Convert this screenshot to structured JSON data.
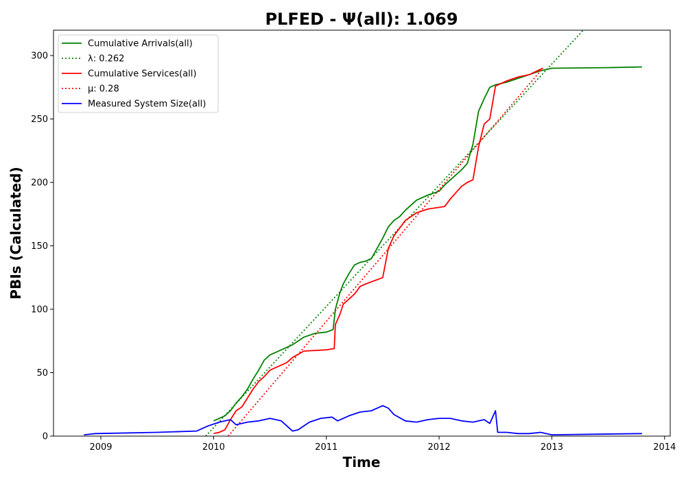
{
  "chart_data": {
    "type": "line",
    "title": "PLFED -  Ψ(all): 1.069",
    "xlabel": "Time",
    "ylabel": "PBIs (Calculated)",
    "xlim": [
      2008.58,
      2014.05
    ],
    "ylim": [
      0,
      320
    ],
    "x_ticks": [
      2009,
      2010,
      2011,
      2012,
      2013,
      2014
    ],
    "y_ticks": [
      0,
      50,
      100,
      150,
      200,
      250,
      300
    ],
    "grid": false,
    "legend_position": "top-left",
    "series": [
      {
        "name": "Cumulative Arrivals(all)",
        "color": "#008000",
        "style": "solid",
        "x": [
          2010.0,
          2010.1,
          2010.15,
          2010.2,
          2010.25,
          2010.3,
          2010.35,
          2010.4,
          2010.45,
          2010.5,
          2010.55,
          2010.6,
          2010.7,
          2010.8,
          2010.9,
          2011.0,
          2011.06,
          2011.08,
          2011.12,
          2011.15,
          2011.2,
          2011.25,
          2011.3,
          2011.35,
          2011.4,
          2011.45,
          2011.5,
          2011.55,
          2011.6,
          2011.65,
          2011.7,
          2011.8,
          2011.9,
          2012.0,
          2012.05,
          2012.1,
          2012.15,
          2012.2,
          2012.25,
          2012.3,
          2012.35,
          2012.4,
          2012.45,
          2012.5,
          2012.6,
          2012.7,
          2012.8,
          2012.9,
          2013.0,
          2013.5,
          2013.8
        ],
        "values": [
          12,
          16,
          20,
          26,
          31,
          37,
          45,
          52,
          60,
          64,
          66,
          68,
          72,
          78,
          81,
          82,
          84,
          100,
          113,
          120,
          128,
          135,
          137,
          138,
          140,
          148,
          156,
          165,
          170,
          173,
          178,
          186,
          190,
          193,
          198,
          202,
          206,
          210,
          215,
          230,
          256,
          266,
          275,
          277,
          279,
          282,
          285,
          288,
          290,
          290.5,
          291
        ]
      },
      {
        "name": "λ: 0.262",
        "color": "#008000",
        "style": "dotted",
        "x": [
          2009.93,
          2013.3
        ],
        "values": [
          0,
          322
        ]
      },
      {
        "name": "Cumulative Services(all)",
        "color": "#ff0000",
        "style": "solid",
        "x": [
          2010.0,
          2010.05,
          2010.1,
          2010.15,
          2010.2,
          2010.25,
          2010.3,
          2010.35,
          2010.4,
          2010.45,
          2010.5,
          2010.55,
          2010.6,
          2010.65,
          2010.7,
          2010.8,
          2011.0,
          2011.07,
          2011.08,
          2011.12,
          2011.15,
          2011.2,
          2011.25,
          2011.3,
          2011.35,
          2011.5,
          2011.55,
          2011.6,
          2011.65,
          2011.7,
          2011.8,
          2011.9,
          2012.05,
          2012.1,
          2012.15,
          2012.2,
          2012.25,
          2012.3,
          2012.35,
          2012.4,
          2012.45,
          2012.5,
          2012.6,
          2012.7,
          2012.8,
          2012.92
        ],
        "values": [
          2,
          3,
          5,
          13,
          20,
          23,
          30,
          37,
          43,
          47,
          52,
          54,
          56,
          58,
          62,
          67,
          68,
          69,
          88,
          96,
          104,
          108,
          112,
          118,
          120,
          125,
          148,
          158,
          164,
          170,
          176,
          179,
          181,
          187,
          192,
          197,
          200,
          202,
          228,
          246,
          250,
          276,
          280,
          283,
          285,
          290
        ]
      },
      {
        "name": "μ: 0.28",
        "color": "#ff0000",
        "style": "dotted",
        "x": [
          2010.13,
          2012.92
        ],
        "values": [
          0,
          290
        ]
      },
      {
        "name": "Measured System Size(all)",
        "color": "#0000ff",
        "style": "solid",
        "x": [
          2008.85,
          2008.95,
          2009.5,
          2009.85,
          2009.95,
          2010.05,
          2010.15,
          2010.2,
          2010.3,
          2010.4,
          2010.5,
          2010.6,
          2010.7,
          2010.75,
          2010.85,
          2010.95,
          2011.05,
          2011.1,
          2011.2,
          2011.3,
          2011.4,
          2011.5,
          2011.55,
          2011.6,
          2011.7,
          2011.8,
          2011.9,
          2012.0,
          2012.1,
          2012.2,
          2012.3,
          2012.4,
          2012.45,
          2012.5,
          2012.52,
          2012.6,
          2012.7,
          2012.8,
          2012.9,
          2013.0,
          2013.4,
          2013.8
        ],
        "values": [
          1,
          2,
          3,
          4,
          8,
          11,
          13,
          9,
          11,
          12,
          14,
          12,
          4,
          5,
          11,
          14,
          15,
          12,
          16,
          19,
          20,
          24,
          22,
          17,
          12,
          11,
          13,
          14,
          14,
          12,
          11,
          13,
          10,
          20,
          3,
          3,
          2,
          2,
          3,
          1,
          1.5,
          2
        ]
      }
    ]
  }
}
